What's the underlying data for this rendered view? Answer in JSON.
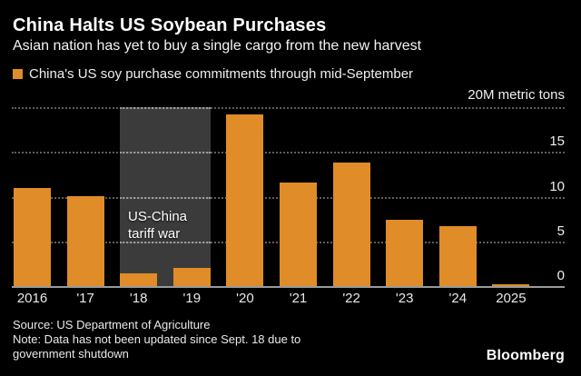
{
  "header": {
    "title": "China Halts US Soybean Purchases",
    "subtitle": "Asian nation has yet to buy a single cargo from the new harvest"
  },
  "legend": {
    "label": "China's US soy purchase commitments through mid-September"
  },
  "chart_data": {
    "type": "bar",
    "title": "China Halts US Soybean Purchases",
    "subtitle": "Asian nation has yet to buy a single cargo from the new harvest",
    "unit_label": "20M metric tons",
    "ylabel": "metric tons (millions)",
    "categories": [
      "2016",
      "'17",
      "'18",
      "'19",
      "'20",
      "'21",
      "'22",
      "'23",
      "'24",
      "2025"
    ],
    "values": [
      11.0,
      10.0,
      1.4,
      2.0,
      19.2,
      11.6,
      13.8,
      7.4,
      6.7,
      0.15
    ],
    "ylim": [
      0,
      20
    ],
    "yticks": [
      15,
      10,
      5,
      0
    ],
    "grid": "horizontal-dotted",
    "legend_position": "top-left",
    "annotation": {
      "line1": "US-China",
      "line2": "tariff war",
      "span_categories": [
        "'18",
        "'19"
      ]
    },
    "colors": {
      "bar": "#e08c28",
      "band": "#3b3b3b",
      "grid": "#5e5e5e",
      "grid_on_band": "#9c9c9c",
      "baseline": "#9a9a9a",
      "background": "#000000"
    }
  },
  "footer": {
    "source": "Source: US Department of Agriculture",
    "note_line1": "Note: Data has not been updated since Sept. 18 due to",
    "note_line2": "government shutdown",
    "brand": "Bloomberg"
  }
}
